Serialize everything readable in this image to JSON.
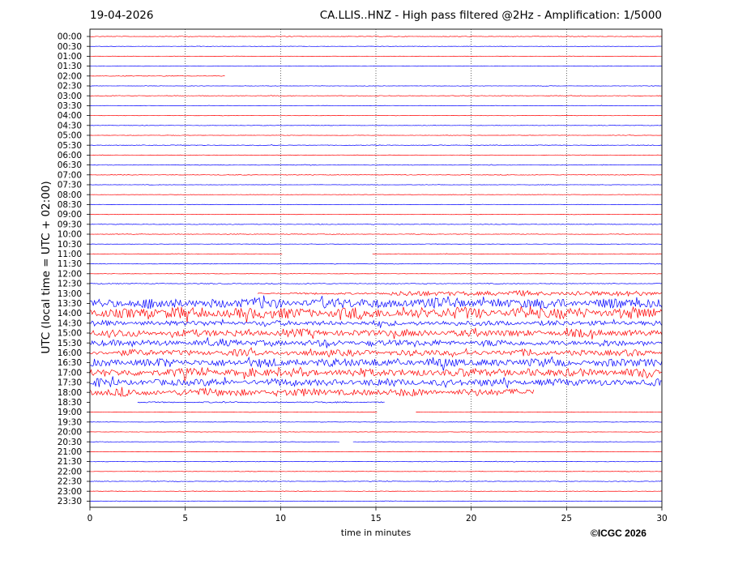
{
  "header": {
    "date": "19-04-2026",
    "title": "CA.LLIS..HNZ - High pass filtered @2Hz - Amplification: 1/5000"
  },
  "footer": {
    "copyright": "©ICGC 2026"
  },
  "chart_data": {
    "type": "line",
    "title": "CA.LLIS..HNZ - High pass filtered @2Hz - Amplification: 1/5000",
    "xlabel": "time in minutes",
    "ylabel": "UTC (local time = UTC + 02:00)",
    "xlim": [
      0,
      30
    ],
    "x_ticks": [
      "0",
      "5",
      "10",
      "15",
      "20",
      "25",
      "30"
    ],
    "grid": "vertical dotted lines at each x tick",
    "colors": {
      "even_row": "#ff0000",
      "odd_row": "#0000ff"
    },
    "rows": [
      {
        "label": "00:00",
        "amp": 0.3
      },
      {
        "label": "00:30",
        "amp": 0.2
      },
      {
        "label": "01:00",
        "amp": 0.2
      },
      {
        "label": "01:30",
        "amp": 0.2
      },
      {
        "label": "02:00",
        "amp": 0.3,
        "end_minute": 7.1
      },
      {
        "label": "02:30",
        "amp": 0.2
      },
      {
        "label": "03:00",
        "amp": 0.3
      },
      {
        "label": "03:30",
        "amp": 0.2
      },
      {
        "label": "04:00",
        "amp": 0.2
      },
      {
        "label": "04:30",
        "amp": 0.2
      },
      {
        "label": "05:00",
        "amp": 0.2
      },
      {
        "label": "05:30",
        "amp": 0.3
      },
      {
        "label": "06:00",
        "amp": 0.2
      },
      {
        "label": "06:30",
        "amp": 0.3
      },
      {
        "label": "07:00",
        "amp": 0.3
      },
      {
        "label": "07:30",
        "amp": 0.2
      },
      {
        "label": "08:00",
        "amp": 0.2
      },
      {
        "label": "08:30",
        "amp": 0.2
      },
      {
        "label": "09:00",
        "amp": 0.2
      },
      {
        "label": "09:30",
        "amp": 0.3
      },
      {
        "label": "10:00",
        "amp": 0.3
      },
      {
        "label": "10:30",
        "amp": 0.2
      },
      {
        "label": "11:00",
        "amp": 0.3,
        "gaps": [
          [
            10.1,
            14.8
          ]
        ]
      },
      {
        "label": "11:30",
        "amp": 0.3
      },
      {
        "label": "12:00",
        "amp": 0.2
      },
      {
        "label": "12:30",
        "amp": 0.4
      },
      {
        "label": "13:00",
        "amp": 2.5,
        "from_minute": 8.8,
        "quiet_until": 15.2
      },
      {
        "label": "13:30",
        "amp": 5
      },
      {
        "label": "14:00",
        "amp": 5.5
      },
      {
        "label": "14:30",
        "amp": 2.5
      },
      {
        "label": "15:00",
        "amp": 3.5
      },
      {
        "label": "15:30",
        "amp": 3
      },
      {
        "label": "16:00",
        "amp": 3
      },
      {
        "label": "16:30",
        "amp": 4
      },
      {
        "label": "17:00",
        "amp": 4
      },
      {
        "label": "17:30",
        "amp": 3.5
      },
      {
        "label": "18:00",
        "amp": 3.5,
        "end_minute": 23.3
      },
      {
        "label": "18:30",
        "amp": 0.6,
        "from_minute": 2.5,
        "end_minute": 15.5
      },
      {
        "label": "19:00",
        "amp": 0.2,
        "gaps": [
          [
            15.1,
            17.1
          ]
        ]
      },
      {
        "label": "19:30",
        "amp": 0.2
      },
      {
        "label": "20:00",
        "amp": 0.2
      },
      {
        "label": "20:30",
        "amp": 0.2,
        "gaps": [
          [
            13.1,
            13.8
          ]
        ]
      },
      {
        "label": "21:00",
        "amp": 0.2
      },
      {
        "label": "21:30",
        "amp": 0.3
      },
      {
        "label": "22:00",
        "amp": 0.2
      },
      {
        "label": "22:30",
        "amp": 0.3
      },
      {
        "label": "23:00",
        "amp": 0.2
      },
      {
        "label": "23:30",
        "amp": 0.2
      }
    ]
  }
}
